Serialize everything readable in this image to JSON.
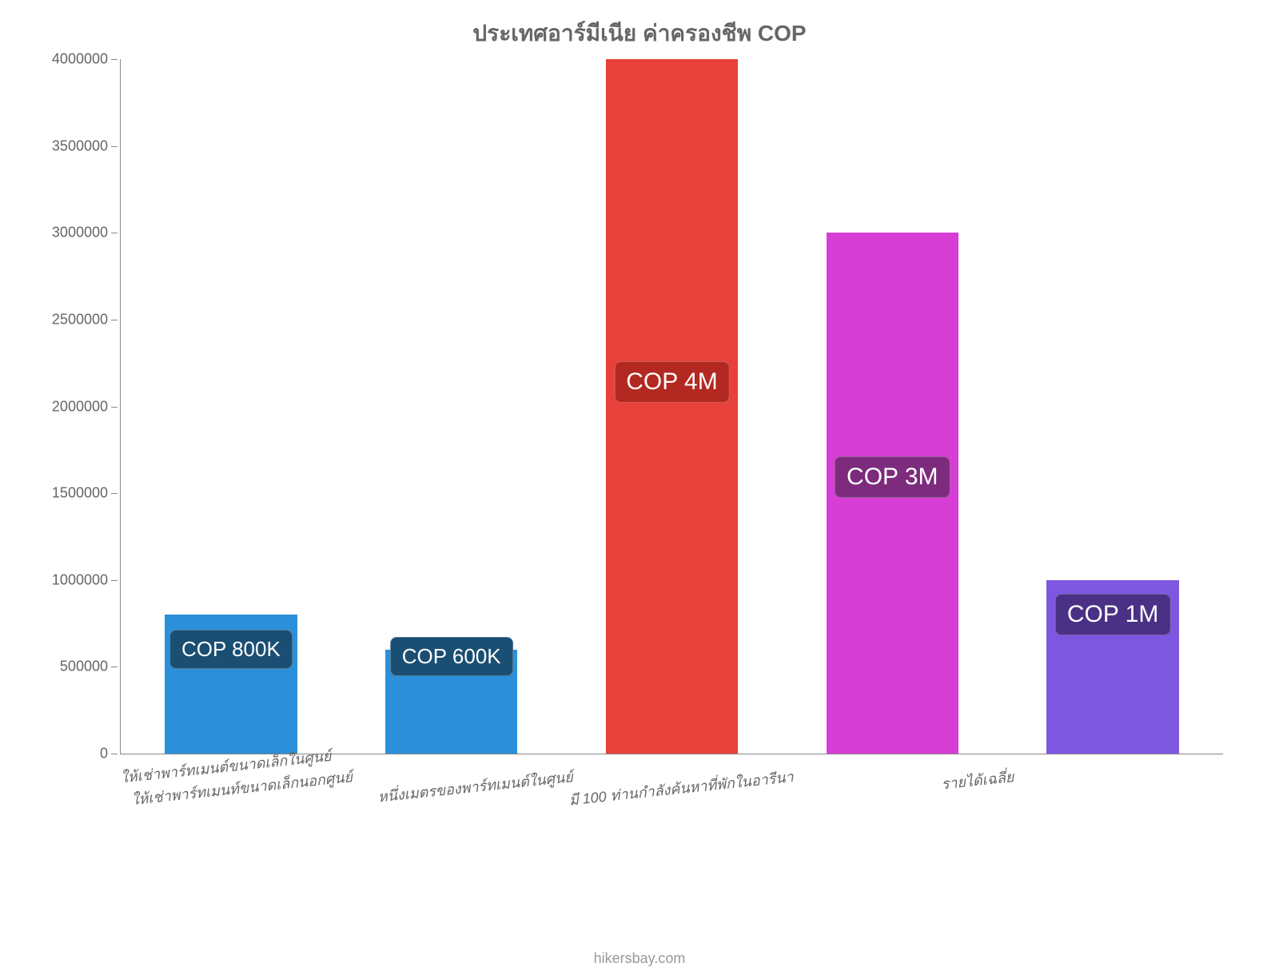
{
  "chart": {
    "type": "bar",
    "title": "ประเทศอาร์มีเนีย ค่าครองชีพ COP",
    "title_fontsize": 28,
    "title_color": "#666666",
    "background_color": "#ffffff",
    "axis_color": "#888888",
    "tick_label_color": "#666666",
    "tick_label_fontsize": 18,
    "xlabel_fontsize": 18,
    "xlabel_color": "#666666",
    "xlabel_rotation_deg": -6,
    "ylim": [
      0,
      4000000
    ],
    "ytick_step": 500000,
    "ytick_labels": [
      "0",
      "500000",
      "1000000",
      "1500000",
      "2000000",
      "2500000",
      "3000000",
      "3500000",
      "4000000"
    ],
    "bar_width_ratio": 0.6,
    "bars": [
      {
        "category": "ให้เช่าพาร์ทเมนต์ขนาดเล็กในศูนย์",
        "value": 800000,
        "color": "#2b90d9",
        "value_label": "COP 800K",
        "label_bg": "#1a4e73",
        "label_fontsize": 26,
        "label_y_value": 620000
      },
      {
        "category": "ให้เช่าพาร์ทเมนท์ขนาดเล็กนอกศูนย์",
        "value": 600000,
        "color": "#2b90d9",
        "value_label": "COP 600K",
        "label_bg": "#1a4e73",
        "label_fontsize": 26,
        "label_y_value": 580000
      },
      {
        "category": "หนึ่งเมตรของพาร์ทเมนต์ในศูนย์",
        "value": 4000000,
        "color": "#e8403a",
        "value_label": "COP 4M",
        "label_bg": "#b32820",
        "label_fontsize": 30,
        "label_y_value": 2170000
      },
      {
        "category": "มี 100 ท่านกำลังค้นหาที่พักในอารีนา",
        "value": 3000000,
        "color": "#d63ed6",
        "value_label": "COP 3M",
        "label_bg": "#7d2b7d",
        "label_fontsize": 30,
        "label_y_value": 1620000
      },
      {
        "category": "รายได้เฉลี่ย",
        "value": 1000000,
        "color": "#7e57e0",
        "value_label": "COP 1M",
        "label_bg": "#4a3185",
        "label_fontsize": 30,
        "label_y_value": 830000
      }
    ],
    "footer_text": "hikersbay.com",
    "footer_fontsize": 18,
    "footer_color": "#999999"
  }
}
